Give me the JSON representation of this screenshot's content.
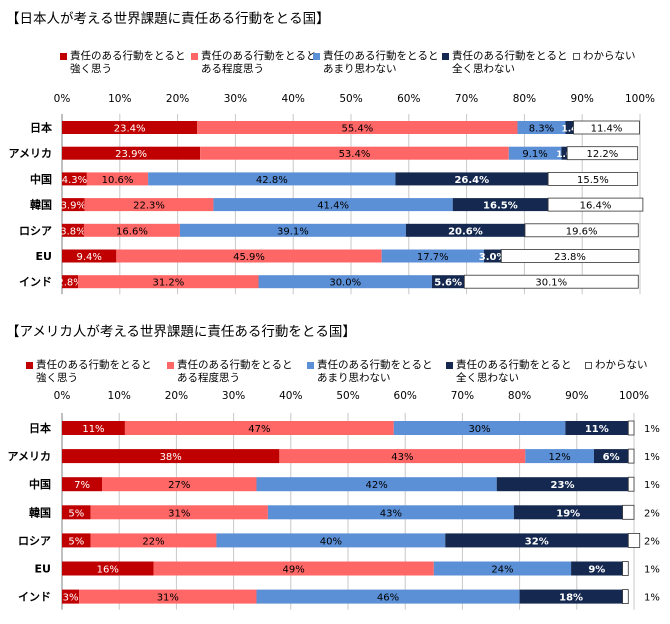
{
  "chart_data": [
    {
      "type": "bar",
      "orientation": "horizontal",
      "stacked": true,
      "title": "【日本人が考える世界課題に責任ある行動をとる国】",
      "categories": [
        "日本",
        "アメリカ",
        "中国",
        "韓国",
        "ロシア",
        "EU",
        "インド"
      ],
      "xaxis_ticks": [
        "0%",
        "10%",
        "20%",
        "30%",
        "40%",
        "50%",
        "60%",
        "70%",
        "80%",
        "90%",
        "100%"
      ],
      "xlim": [
        0,
        100
      ],
      "legend": [
        {
          "line1": "責任のある行動をとると",
          "line2": "強く思う",
          "color": "#c00000"
        },
        {
          "line1": "責任のある行動をとると",
          "line2": "ある程度思う",
          "color": "#ff6666"
        },
        {
          "line1": "責任のある行動をとると",
          "line2": "あまり思わない",
          "color": "#5b8fd6"
        },
        {
          "line1": "責任のある行動をとると",
          "line2": "全く思わない",
          "color": "#142850"
        },
        {
          "line1": "わからない",
          "line2": "",
          "color": "#ffffff"
        }
      ],
      "series": [
        {
          "name": "責任のある行動をとると強く思う",
          "values": [
            23.4,
            23.9,
            4.3,
            3.9,
            3.8,
            9.4,
            2.8
          ],
          "labels": [
            "23.4%",
            "23.9%",
            "4.3%",
            "3.9%",
            "3.8%",
            "9.4%",
            "2.8%"
          ]
        },
        {
          "name": "責任のある行動をとるとある程度思う",
          "values": [
            55.4,
            53.4,
            10.6,
            22.3,
            16.6,
            45.9,
            31.2
          ],
          "labels": [
            "55.4%",
            "53.4%",
            "10.6%",
            "22.3%",
            "16.6%",
            "45.9%",
            "31.2%"
          ]
        },
        {
          "name": "責任のある行動をとるとあまり思わない",
          "values": [
            8.3,
            9.1,
            42.8,
            41.4,
            39.1,
            17.7,
            30.0
          ],
          "labels": [
            "8.3%",
            "9.1%",
            "42.8%",
            "41.4%",
            "39.1%",
            "17.7%",
            "30.0%"
          ]
        },
        {
          "name": "責任のある行動をとると全く思わない",
          "values": [
            1.4,
            1.0,
            26.4,
            16.5,
            20.6,
            3.0,
            5.6
          ],
          "labels": [
            "1.4",
            "1.0",
            "26.4%",
            "16.5%",
            "20.6%",
            "3.0%",
            "5.6%"
          ]
        },
        {
          "name": "わからない",
          "values": [
            11.4,
            12.2,
            15.5,
            16.4,
            19.6,
            23.8,
            30.1
          ],
          "labels": [
            "11.4%",
            "12.2%",
            "15.5%",
            "16.4%",
            "19.6%",
            "23.8%",
            "30.1%"
          ]
        }
      ]
    },
    {
      "type": "bar",
      "orientation": "horizontal",
      "stacked": true,
      "title": "【アメリカ人が考える世界課題に責任ある行動をとる国】",
      "categories": [
        "日本",
        "アメリカ",
        "中国",
        "韓国",
        "ロシア",
        "EU",
        "インド"
      ],
      "xaxis_ticks": [
        "0%",
        "10%",
        "20%",
        "30%",
        "40%",
        "50%",
        "60%",
        "70%",
        "80%",
        "90%",
        "100%"
      ],
      "xlim": [
        0,
        100
      ],
      "legend": [
        {
          "line1": "責任のある行動をとると",
          "line2": "強く思う",
          "color": "#c00000"
        },
        {
          "line1": "責任のある行動をとると",
          "line2": "ある程度思う",
          "color": "#ff6666"
        },
        {
          "line1": "責任のある行動をとると",
          "line2": "あまり思わない",
          "color": "#5b8fd6"
        },
        {
          "line1": "責任のある行動をとると",
          "line2": "全く思わない",
          "color": "#142850"
        },
        {
          "line1": "わからない",
          "line2": "",
          "color": "#ffffff"
        }
      ],
      "series": [
        {
          "name": "責任のある行動をとると強く思う",
          "values": [
            11,
            38,
            7,
            5,
            5,
            16,
            3
          ],
          "labels": [
            "11%",
            "38%",
            "7%",
            "5%",
            "5%",
            "16%",
            "3%"
          ]
        },
        {
          "name": "責任のある行動をとるとある程度思う",
          "values": [
            47,
            43,
            27,
            31,
            22,
            49,
            31
          ],
          "labels": [
            "47%",
            "43%",
            "27%",
            "31%",
            "22%",
            "49%",
            "31%"
          ]
        },
        {
          "name": "責任のある行動をとるとあまり思わない",
          "values": [
            30,
            12,
            42,
            43,
            40,
            24,
            46
          ],
          "labels": [
            "30%",
            "12%",
            "42%",
            "43%",
            "40%",
            "24%",
            "46%"
          ]
        },
        {
          "name": "責任のある行動をとると全く思わない",
          "values": [
            11,
            6,
            23,
            19,
            32,
            9,
            18
          ],
          "labels": [
            "11%",
            "6%",
            "23%",
            "19%",
            "32%",
            "9%",
            "18%"
          ]
        },
        {
          "name": "わからない",
          "values": [
            1,
            1,
            1,
            2,
            2,
            1,
            1
          ],
          "labels": [
            "1%",
            "1%",
            "1%",
            "2%",
            "2%",
            "1%",
            "1%"
          ]
        }
      ]
    }
  ]
}
